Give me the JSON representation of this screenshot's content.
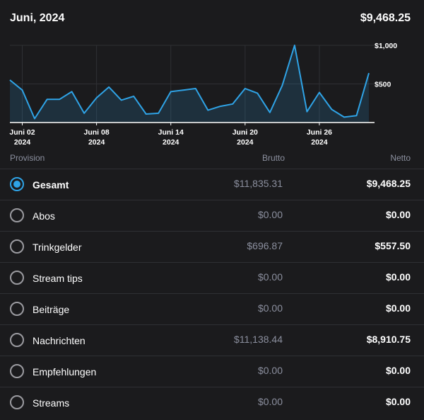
{
  "header": {
    "title": "Juni, 2024",
    "total": "$9,468.25"
  },
  "columns": {
    "provision": "Provision",
    "brutto": "Brutto",
    "netto": "Netto"
  },
  "rows": [
    {
      "label": "Gesamt",
      "brutto": "$11,835.31",
      "netto": "$9,468.25",
      "selected": true
    },
    {
      "label": "Abos",
      "brutto": "$0.00",
      "netto": "$0.00",
      "selected": false
    },
    {
      "label": "Trinkgelder",
      "brutto": "$696.87",
      "netto": "$557.50",
      "selected": false
    },
    {
      "label": "Stream tips",
      "brutto": "$0.00",
      "netto": "$0.00",
      "selected": false
    },
    {
      "label": "Beiträge",
      "brutto": "$0.00",
      "netto": "$0.00",
      "selected": false
    },
    {
      "label": "Nachrichten",
      "brutto": "$11,138.44",
      "netto": "$8,910.75",
      "selected": false
    },
    {
      "label": "Empfehlungen",
      "brutto": "$0.00",
      "netto": "$0.00",
      "selected": false
    },
    {
      "label": "Streams",
      "brutto": "$0.00",
      "netto": "$0.00",
      "selected": false
    }
  ],
  "colors": {
    "accent": "#2fa3e6",
    "background": "#1b1b1d",
    "muted": "#8b8f9e"
  },
  "chart_data": {
    "type": "area",
    "title": "",
    "xlabel": "",
    "ylabel": "",
    "ylim": [
      0,
      1000
    ],
    "xlim": [
      "2024-06-01",
      "2024-06-30"
    ],
    "y_ticks": [
      {
        "value": 500,
        "label": "$500"
      },
      {
        "value": 1000,
        "label": "$1,000"
      }
    ],
    "x_ticks": [
      {
        "date": "2024-06-02",
        "day": "Juni 02",
        "year": "2024"
      },
      {
        "date": "2024-06-08",
        "day": "Juni 08",
        "year": "2024"
      },
      {
        "date": "2024-06-14",
        "day": "Juni 14",
        "year": "2024"
      },
      {
        "date": "2024-06-20",
        "day": "Juni 20",
        "year": "2024"
      },
      {
        "date": "2024-06-26",
        "day": "Juni 26",
        "year": "2024"
      }
    ],
    "grid": true,
    "series": [
      {
        "x": [
          "2024-06-01",
          "2024-06-02",
          "2024-06-03",
          "2024-06-04",
          "2024-06-05",
          "2024-06-06",
          "2024-06-07",
          "2024-06-08",
          "2024-06-09",
          "2024-06-10",
          "2024-06-11",
          "2024-06-12",
          "2024-06-13",
          "2024-06-14",
          "2024-06-15",
          "2024-06-16",
          "2024-06-17",
          "2024-06-18",
          "2024-06-19",
          "2024-06-20",
          "2024-06-21",
          "2024-06-22",
          "2024-06-23",
          "2024-06-24",
          "2024-06-25",
          "2024-06-26",
          "2024-06-27",
          "2024-06-28",
          "2024-06-29",
          "2024-06-30"
        ],
        "values": [
          550,
          420,
          50,
          300,
          300,
          400,
          120,
          320,
          460,
          290,
          340,
          110,
          120,
          400,
          420,
          440,
          160,
          210,
          240,
          440,
          380,
          130,
          480,
          1000,
          140,
          390,
          170,
          70,
          90,
          640
        ]
      }
    ]
  }
}
